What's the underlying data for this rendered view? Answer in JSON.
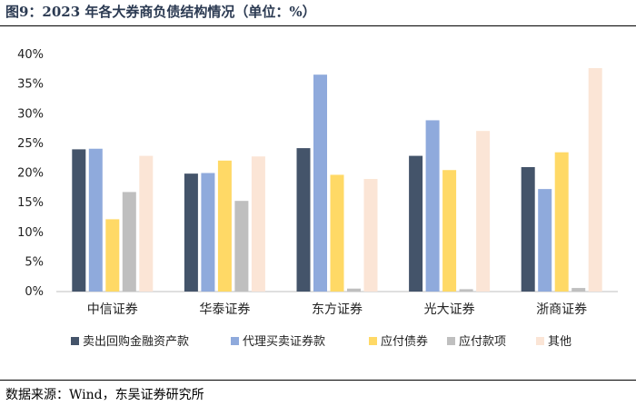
{
  "title": "图9：2023 年各大券商负债结构情况（单位：%）",
  "source": "数据来源：Wind，东吴证券研究所",
  "chart_data": {
    "type": "bar",
    "categories": [
      "中信证券",
      "华泰证券",
      "东方证券",
      "光大证券",
      "浙商证券"
    ],
    "series": [
      {
        "name": "卖出回购金融资产款",
        "color": "#44546a",
        "values": [
          24.0,
          19.9,
          24.2,
          22.9,
          21.0
        ]
      },
      {
        "name": "代理买卖证券款",
        "color": "#8faadc",
        "values": [
          24.1,
          20.0,
          36.6,
          28.9,
          17.3
        ]
      },
      {
        "name": "应付债券",
        "color": "#ffd966",
        "values": [
          12.2,
          22.1,
          19.7,
          20.5,
          23.5
        ]
      },
      {
        "name": "应付款项",
        "color": "#bfbfbf",
        "values": [
          16.8,
          15.3,
          0.5,
          0.4,
          0.6
        ]
      },
      {
        "name": "其他",
        "color": "#fbe5d6",
        "values": [
          22.9,
          22.8,
          19.0,
          27.1,
          37.7
        ]
      }
    ],
    "ylim": [
      0,
      40
    ],
    "yticks": [
      "0%",
      "5%",
      "10%",
      "15%",
      "20%",
      "25%",
      "30%",
      "35%",
      "40%"
    ],
    "ytick_values": [
      0,
      5,
      10,
      15,
      20,
      25,
      30,
      35,
      40
    ],
    "grid": false,
    "legend_position": "bottom"
  }
}
